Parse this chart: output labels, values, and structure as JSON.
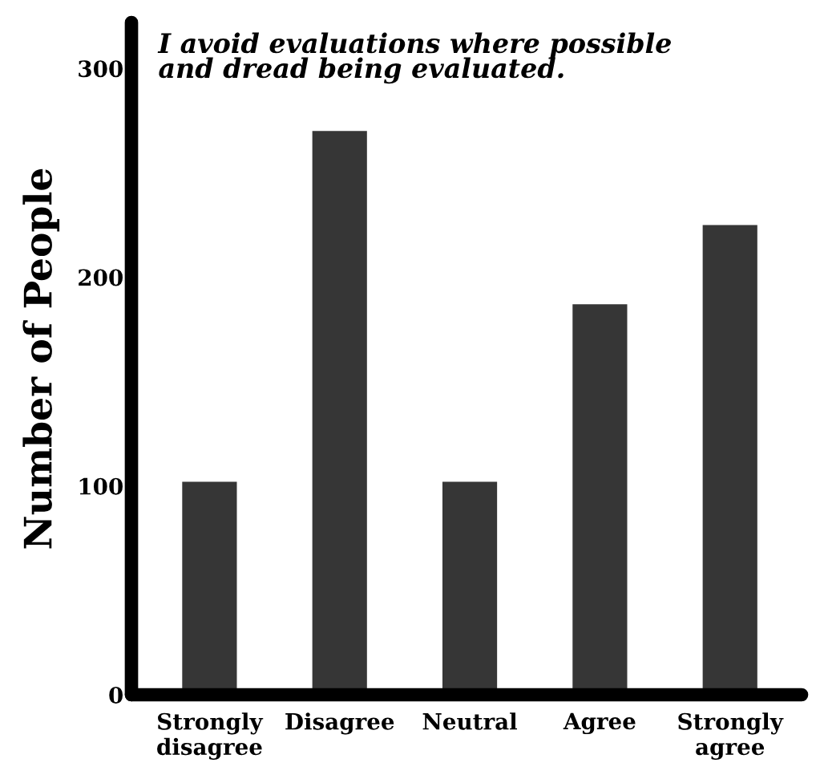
{
  "chart_data": {
    "type": "bar",
    "title": "I avoid evaluations where possible\nand dread being evaluated.",
    "ylabel": "Number of People",
    "categories": [
      "Strongly\ndisagree",
      "Disagree",
      "Neutral",
      "Agree",
      "Strongly\nagree"
    ],
    "values": [
      102,
      270,
      102,
      187,
      225
    ],
    "color": "#363636",
    "ylim": [
      0,
      322
    ],
    "yticks": [
      0,
      100,
      200,
      300
    ],
    "grid": false
  }
}
